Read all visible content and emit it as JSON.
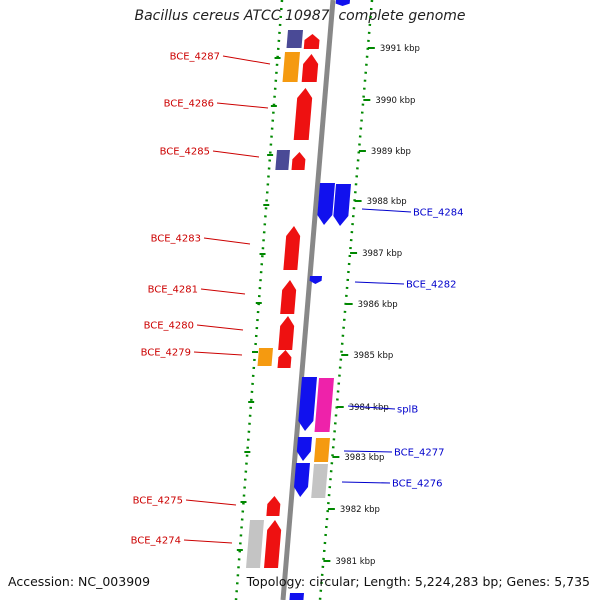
{
  "title": "Bacillus cereus ATCC 10987, complete genome",
  "accession": "Accession: NC_003909",
  "topology": "Topology: circular; Length: 5,224,283 bp; Genes: 5,735",
  "colors": {
    "red": "#ee1111",
    "blue": "#1111ee",
    "orange": "#f59a10",
    "navy": "#4a4a96",
    "pink": "#ee22aa",
    "gray": "#c4c4c4",
    "left_label": "#cc0000",
    "right_label": "#0000cc",
    "tick": "#008800",
    "backbone": "#888888"
  },
  "scale_ticks": [
    "3991 kbp",
    "3990 kbp",
    "3989 kbp",
    "3988 kbp",
    "3987 kbp",
    "3986 kbp",
    "3985 kbp",
    "3984 kbp",
    "3983 kbp",
    "3982 kbp",
    "3981 kbp"
  ],
  "left_labels": [
    "BCE_4287",
    "BCE_4286",
    "BCE_4285",
    "BCE_4283",
    "BCE_4281",
    "BCE_4280",
    "BCE_4279",
    "BCE_4275",
    "BCE_4274"
  ],
  "right_labels": [
    "BCE_4284",
    "BCE_4282",
    "splB",
    "BCE_4277",
    "BCE_4276"
  ]
}
